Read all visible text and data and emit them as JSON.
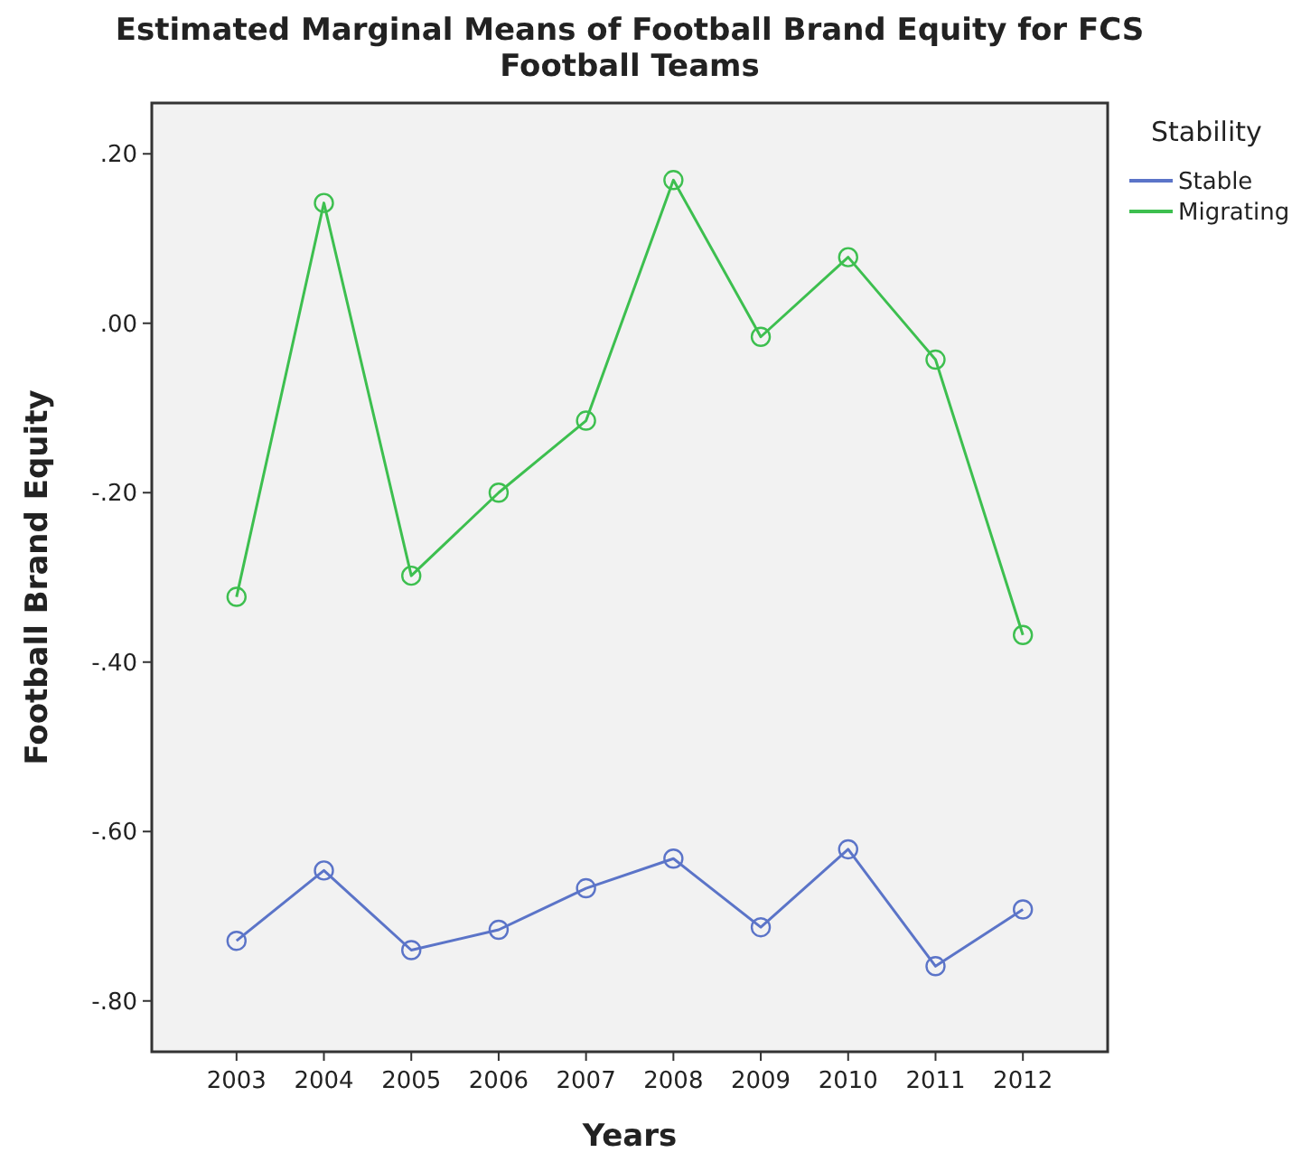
{
  "chart_data": {
    "type": "line",
    "title": "Estimated Marginal Means of Football Brand Equity for FCS Football Teams",
    "xlabel": "Years",
    "ylabel": "Football Brand Equity",
    "legend_title": "Stability",
    "legend": "right",
    "marker": "circle",
    "line_style": "solid",
    "grid": false,
    "categories": [
      "2003",
      "2004",
      "2005",
      "2006",
      "2007",
      "2008",
      "2009",
      "2010",
      "2011",
      "2012"
    ],
    "ylim": [
      -0.86,
      0.26
    ],
    "yticks": [
      {
        "value": 0.2,
        "label": ".20"
      },
      {
        "value": 0,
        "label": ".00"
      },
      {
        "value": -0.2,
        "label": "-.20"
      },
      {
        "value": -0.4,
        "label": "-.40"
      },
      {
        "value": -0.6,
        "label": "-.60"
      },
      {
        "value": -0.8,
        "label": "-.80"
      }
    ],
    "series": [
      {
        "name": "Stable",
        "color": "#5b74c8",
        "values": [
          -0.729,
          -0.646,
          -0.74,
          -0.716,
          -0.667,
          -0.632,
          -0.713,
          -0.621,
          -0.759,
          -0.692
        ]
      },
      {
        "name": "Migrating",
        "color": "#3dbf4f",
        "values": [
          -0.323,
          0.142,
          -0.298,
          -0.2,
          -0.115,
          0.169,
          -0.016,
          0.078,
          -0.043,
          -0.368
        ]
      }
    ]
  }
}
